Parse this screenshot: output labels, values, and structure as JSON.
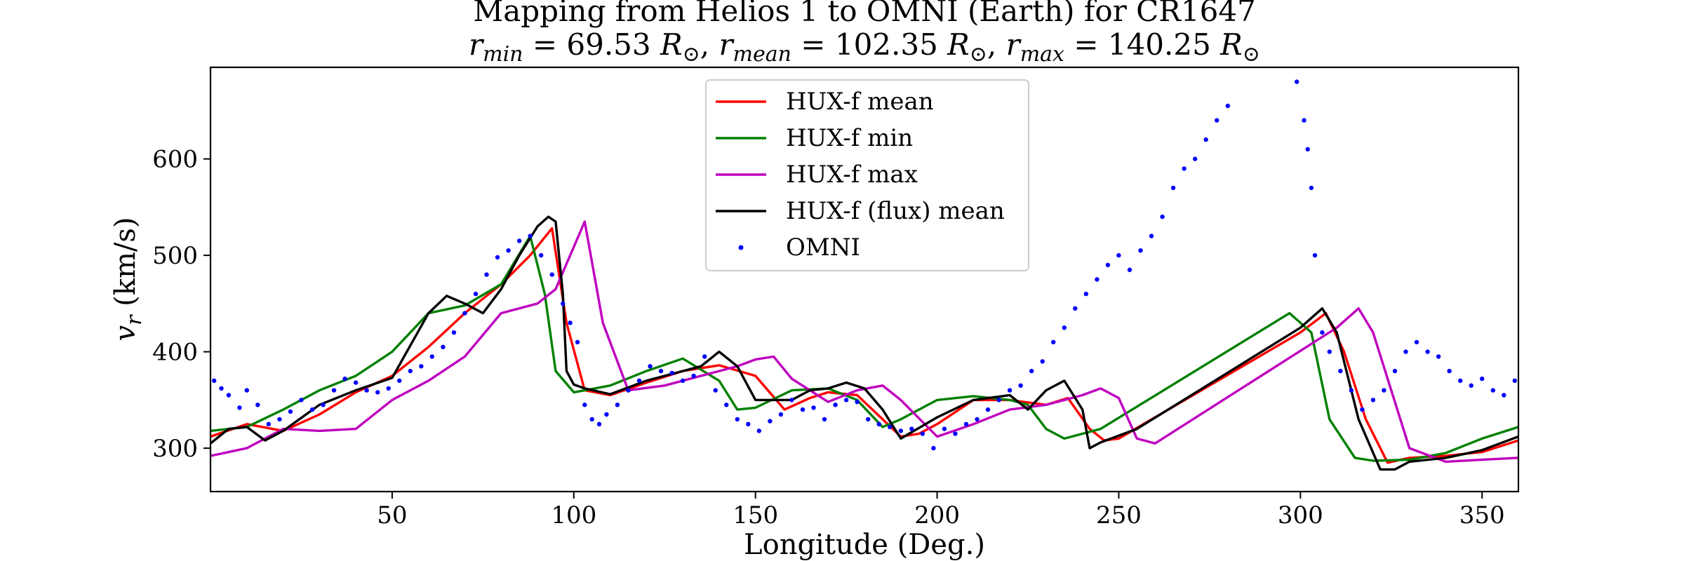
{
  "chart_data": {
    "type": "line",
    "title": "Mapping from Helios 1 to OMNI (Earth) for CR1647",
    "subtitle": {
      "parts": [
        {
          "v": "r",
          "sub": "min",
          "eq": " = 69.53 ",
          "unit": "R",
          "unit_sub": "⊙",
          "sep": ", "
        },
        {
          "v": "r",
          "sub": "mean",
          "eq": " = 102.35 ",
          "unit": "R",
          "unit_sub": "⊙",
          "sep": ", "
        },
        {
          "v": "r",
          "sub": "max",
          "eq": " = 140.25 ",
          "unit": "R",
          "unit_sub": "⊙",
          "sep": ""
        }
      ]
    },
    "xlabel": "Longitude (Deg.)",
    "ylabel": {
      "v": "v",
      "sub": "r",
      "rest": " (km/s)"
    },
    "xlim": [
      0,
      360
    ],
    "ylim": [
      255,
      695
    ],
    "xticks": [
      50,
      100,
      150,
      200,
      250,
      300,
      350
    ],
    "yticks": [
      300,
      400,
      500,
      600
    ],
    "grid": false,
    "legend_position": "top-center",
    "series": [
      {
        "name": "HUX-f mean",
        "style": "line",
        "color": "#ff0000",
        "x": [
          0,
          10,
          20,
          30,
          40,
          50,
          60,
          70,
          80,
          88,
          94,
          98,
          103,
          110,
          120,
          130,
          140,
          150,
          158,
          165,
          170,
          178,
          185,
          190,
          195,
          200,
          210,
          220,
          230,
          236,
          242,
          246,
          250,
          300,
          307,
          312,
          318,
          324,
          330,
          340,
          350,
          360
        ],
        "y": [
          312,
          325,
          318,
          335,
          358,
          375,
          405,
          440,
          470,
          500,
          528,
          430,
          360,
          355,
          368,
          380,
          386,
          375,
          340,
          352,
          358,
          355,
          330,
          312,
          315,
          325,
          350,
          350,
          345,
          352,
          320,
          308,
          310,
          420,
          440,
          400,
          330,
          285,
          290,
          292,
          296,
          308
        ]
      },
      {
        "name": "HUX-f min",
        "style": "line",
        "color": "#008000",
        "x": [
          0,
          10,
          20,
          30,
          40,
          50,
          60,
          70,
          80,
          88,
          92,
          95,
          100,
          110,
          120,
          130,
          140,
          145,
          150,
          160,
          170,
          178,
          185,
          190,
          200,
          210,
          220,
          225,
          230,
          235,
          245,
          297,
          303,
          308,
          315,
          320,
          330,
          340,
          350,
          360
        ],
        "y": [
          318,
          322,
          340,
          360,
          375,
          400,
          440,
          448,
          470,
          520,
          460,
          380,
          358,
          365,
          380,
          393,
          370,
          340,
          342,
          360,
          362,
          350,
          322,
          330,
          350,
          354,
          350,
          345,
          320,
          310,
          320,
          440,
          420,
          330,
          290,
          287,
          288,
          295,
          310,
          322
        ]
      },
      {
        "name": "HUX-f max",
        "style": "line",
        "color": "#bf00bf",
        "x": [
          0,
          10,
          20,
          30,
          40,
          50,
          60,
          70,
          80,
          90,
          95,
          103,
          108,
          115,
          125,
          135,
          145,
          150,
          155,
          160,
          170,
          178,
          185,
          190,
          200,
          210,
          220,
          230,
          240,
          245,
          250,
          255,
          260,
          310,
          316,
          320,
          325,
          330,
          340,
          350,
          360
        ],
        "y": [
          292,
          300,
          320,
          318,
          320,
          350,
          370,
          395,
          440,
          450,
          465,
          535,
          430,
          360,
          365,
          375,
          385,
          392,
          395,
          372,
          348,
          360,
          365,
          350,
          312,
          325,
          340,
          345,
          355,
          362,
          352,
          310,
          305,
          425,
          445,
          420,
          360,
          300,
          286,
          288,
          290
        ]
      },
      {
        "name": "HUX-f (flux) mean",
        "style": "line",
        "color": "#000000",
        "x": [
          0,
          5,
          10,
          15,
          20,
          30,
          40,
          50,
          60,
          65,
          70,
          75,
          80,
          85,
          90,
          93,
          95,
          97,
          98,
          100,
          103,
          110,
          120,
          130,
          135,
          140,
          145,
          150,
          160,
          165,
          170,
          175,
          180,
          185,
          190,
          200,
          210,
          220,
          225,
          230,
          235,
          240,
          242,
          245,
          255,
          300,
          306,
          310,
          316,
          322,
          326,
          330,
          340,
          350,
          360
        ],
        "y": [
          305,
          320,
          322,
          308,
          318,
          345,
          360,
          373,
          440,
          458,
          450,
          440,
          465,
          500,
          530,
          540,
          535,
          460,
          380,
          366,
          362,
          356,
          370,
          380,
          385,
          400,
          385,
          350,
          350,
          360,
          362,
          368,
          362,
          340,
          310,
          332,
          350,
          355,
          340,
          360,
          370,
          340,
          300,
          306,
          320,
          425,
          445,
          420,
          330,
          278,
          278,
          286,
          290,
          298,
          312
        ]
      },
      {
        "name": "OMNI",
        "style": "scatter",
        "color": "#0000ff",
        "x": [
          1,
          3,
          5,
          8,
          10,
          13,
          16,
          19,
          22,
          25,
          28,
          31,
          34,
          37,
          40,
          43,
          46,
          49,
          52,
          55,
          58,
          61,
          64,
          67,
          70,
          73,
          76,
          79,
          82,
          85,
          88,
          91,
          94,
          97,
          99,
          101,
          103,
          105,
          107,
          109,
          112,
          115,
          118,
          121,
          124,
          127,
          130,
          133,
          136,
          139,
          142,
          145,
          148,
          151,
          154,
          157,
          160,
          163,
          166,
          169,
          172,
          175,
          178,
          181,
          184,
          187,
          190,
          193,
          196,
          199,
          202,
          205,
          208,
          211,
          214,
          217,
          220,
          223,
          226,
          229,
          232,
          235,
          238,
          241,
          244,
          247,
          250,
          253,
          256,
          259,
          262,
          265,
          268,
          271,
          274,
          277,
          280,
          299,
          301,
          302,
          303,
          304,
          306,
          308,
          311,
          314,
          317,
          320,
          323,
          326,
          329,
          332,
          335,
          338,
          341,
          344,
          347,
          350,
          353,
          356,
          359
        ],
        "y": [
          370,
          362,
          355,
          342,
          360,
          345,
          325,
          330,
          338,
          350,
          340,
          345,
          360,
          372,
          368,
          360,
          358,
          362,
          370,
          380,
          385,
          395,
          405,
          420,
          440,
          460,
          480,
          498,
          505,
          515,
          520,
          500,
          480,
          450,
          430,
          410,
          345,
          330,
          325,
          335,
          345,
          360,
          370,
          385,
          380,
          378,
          370,
          375,
          395,
          360,
          345,
          330,
          325,
          318,
          328,
          335,
          350,
          340,
          342,
          330,
          345,
          350,
          348,
          330,
          325,
          322,
          318,
          320,
          315,
          300,
          320,
          315,
          325,
          330,
          340,
          350,
          360,
          365,
          380,
          390,
          410,
          425,
          445,
          460,
          475,
          490,
          500,
          485,
          505,
          520,
          540,
          570,
          590,
          600,
          620,
          640,
          655,
          680,
          640,
          610,
          570,
          500,
          420,
          400,
          380,
          360,
          340,
          350,
          360,
          380,
          400,
          410,
          400,
          395,
          380,
          370,
          365,
          372,
          360,
          355,
          370
        ]
      }
    ]
  }
}
